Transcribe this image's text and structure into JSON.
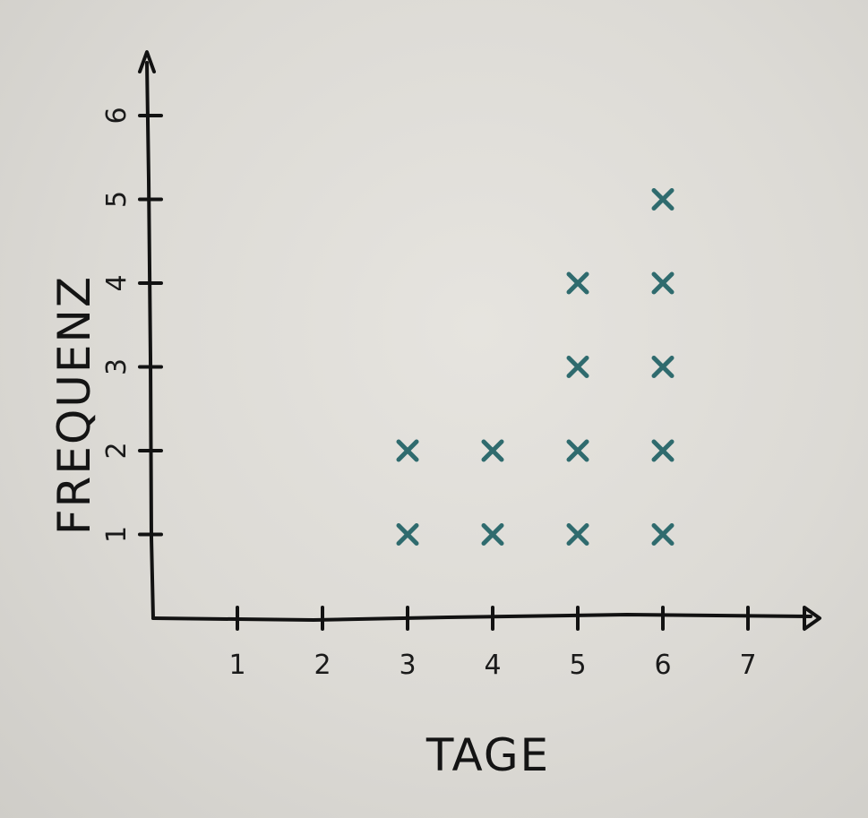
{
  "chart_data": {
    "type": "scatter",
    "title": "",
    "xlabel": "TAGE",
    "ylabel": "FREQUENZ",
    "xlim": [
      0,
      7
    ],
    "ylim": [
      0,
      6
    ],
    "x_ticks": [
      "1",
      "2",
      "3",
      "4",
      "5",
      "6",
      "7"
    ],
    "y_ticks": [
      "1",
      "2",
      "3",
      "4",
      "5",
      "6"
    ],
    "grid": false,
    "series": [
      {
        "marker": "x",
        "color": "#2f6b6e",
        "points": [
          {
            "x": 3,
            "y": 1
          },
          {
            "x": 3,
            "y": 2
          },
          {
            "x": 4,
            "y": 1
          },
          {
            "x": 4,
            "y": 2
          },
          {
            "x": 5,
            "y": 1
          },
          {
            "x": 5,
            "y": 2
          },
          {
            "x": 5,
            "y": 3
          },
          {
            "x": 5,
            "y": 4
          },
          {
            "x": 6,
            "y": 1
          },
          {
            "x": 6,
            "y": 2
          },
          {
            "x": 6,
            "y": 3
          },
          {
            "x": 6,
            "y": 4
          },
          {
            "x": 6,
            "y": 5
          }
        ]
      }
    ]
  }
}
